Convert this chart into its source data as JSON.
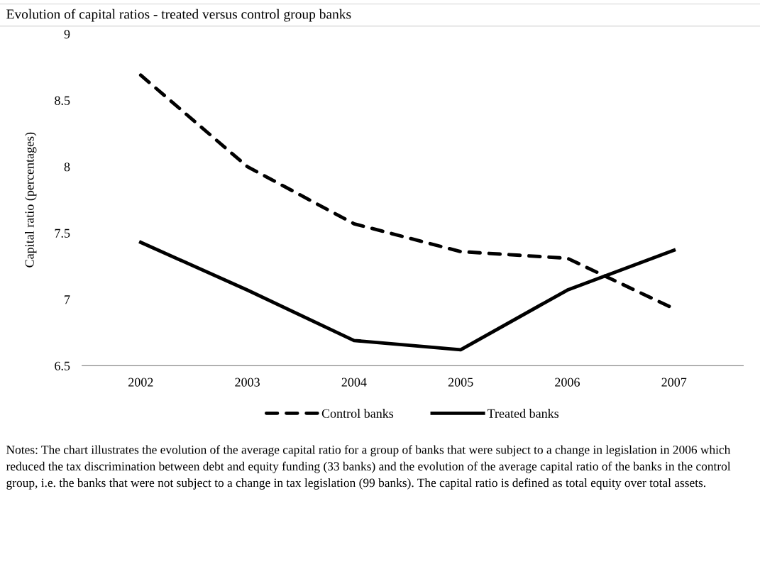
{
  "chart_data": {
    "type": "line",
    "title": "Evolution of capital ratios - treated versus control group banks",
    "ylabel": "Capital ratio (percentages)",
    "categories": [
      "2002",
      "2003",
      "2004",
      "2005",
      "2006",
      "2007"
    ],
    "series": [
      {
        "name": "Control banks",
        "color": "#000000",
        "line_style": "dashed",
        "values": [
          8.69,
          8.0,
          7.57,
          7.36,
          7.31,
          6.93
        ]
      },
      {
        "name": "Treated banks",
        "color": "#000000",
        "line_style": "solid",
        "values": [
          7.43,
          7.07,
          6.69,
          6.62,
          7.07,
          7.37
        ]
      }
    ],
    "ylim": [
      6.5,
      9
    ],
    "yticks": [
      6.5,
      7,
      7.5,
      8,
      8.5,
      9
    ],
    "grid": false,
    "legend": "bottom",
    "marker": "none",
    "annotations": [
      "Notes: The chart illustrates the evolution of the average capital ratio for a group of banks that were subject to a change in legislation in 2006 which reduced the tax discrimination between debt and equity funding (33 banks) and the evolution of the average capital ratio of the banks in the control group, i.e. the banks that were not subject to a change in tax legislation (99 banks). The capital ratio is defined as total equity over total assets."
    ]
  }
}
